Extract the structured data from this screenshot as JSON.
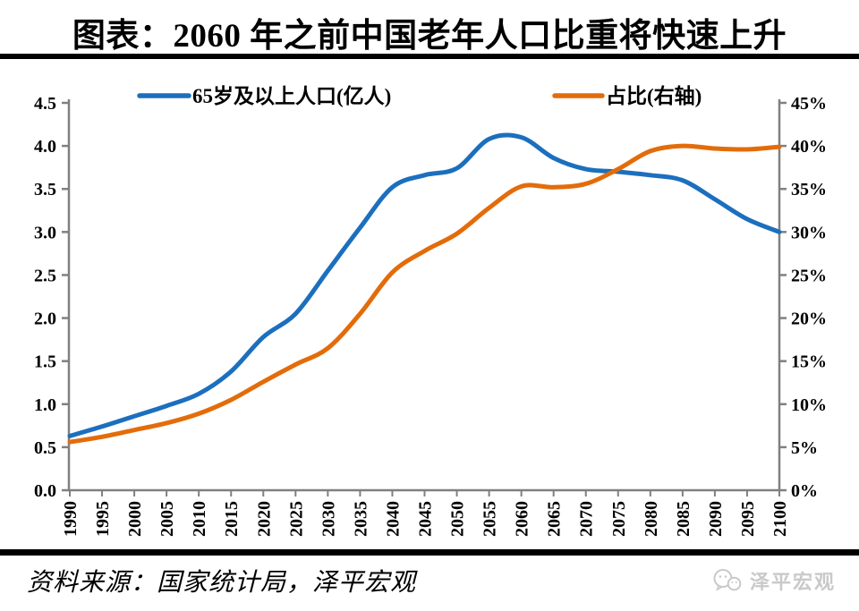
{
  "chart_data": {
    "type": "line",
    "title": "图表：2060 年之前中国老年人口比重将快速上升",
    "categories": [
      "1990",
      "1995",
      "2000",
      "2005",
      "2010",
      "2015",
      "2020",
      "2025",
      "2030",
      "2035",
      "2040",
      "2045",
      "2050",
      "2055",
      "2060",
      "2065",
      "2070",
      "2075",
      "2080",
      "2085",
      "2090",
      "2095",
      "2100"
    ],
    "series": [
      {
        "name": "65岁及以上人口(亿人)",
        "axis": "left",
        "color": "#1C6FBE",
        "values": [
          0.63,
          0.74,
          0.86,
          0.98,
          1.12,
          1.38,
          1.78,
          2.05,
          2.55,
          3.05,
          3.52,
          3.66,
          3.74,
          4.08,
          4.1,
          3.86,
          3.73,
          3.7,
          3.66,
          3.6,
          3.38,
          3.15,
          3.0
        ]
      },
      {
        "name": "占比(右轴)",
        "axis": "right",
        "color": "#E36C0A",
        "values": [
          5.6,
          6.2,
          7.0,
          7.8,
          8.9,
          10.5,
          12.6,
          14.6,
          16.5,
          20.5,
          25.3,
          27.8,
          29.8,
          32.8,
          35.3,
          35.2,
          35.6,
          37.3,
          39.4,
          40.0,
          39.7,
          39.6,
          39.9
        ]
      }
    ],
    "left_axis": {
      "min": 0,
      "max": 4.5,
      "tick_labels": [
        "0.0",
        "0.5",
        "1.0",
        "1.5",
        "2.0",
        "2.5",
        "3.0",
        "3.5",
        "4.0",
        "4.5"
      ]
    },
    "right_axis": {
      "min": 0,
      "max": 45,
      "tick_labels": [
        "0%",
        "5%",
        "10%",
        "15%",
        "20%",
        "25%",
        "30%",
        "35%",
        "40%",
        "45%"
      ]
    },
    "grid": false,
    "legend_position": "top"
  },
  "footer": {
    "source": "资料来源：国家统计局，泽平宏观",
    "watermark": "泽平宏观"
  },
  "colors": {
    "series1": "#1C6FBE",
    "series2": "#E36C0A",
    "axis": "#808080",
    "rule": "#000000",
    "watermark": "#C9C9C9"
  }
}
